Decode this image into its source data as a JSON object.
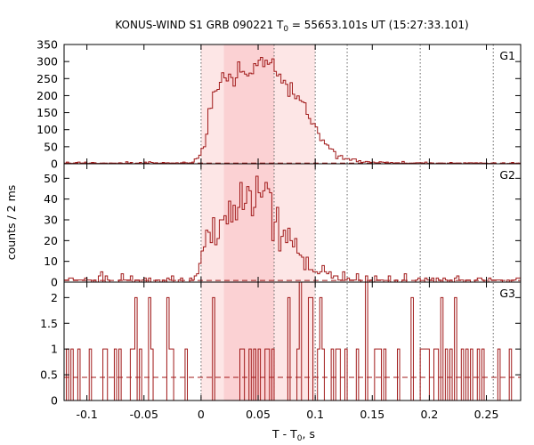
{
  "chart_data": {
    "type": "line",
    "title": "KONUS-WIND S1 GRB 090221 T",
    "title_sub": "0",
    "title_rest": " = 55653.101s UT (15:27:33.101)",
    "xlabel": "T - T",
    "xlabel_sub": "0",
    "xlabel_rest": ", s",
    "ylabel": "counts / 2 ms",
    "xlim": [
      -0.12,
      0.28
    ],
    "x_ticks": [
      -0.1,
      -0.05,
      0,
      0.05,
      0.1,
      0.15,
      0.2,
      0.25
    ],
    "x_tick_labels": [
      "-0.1",
      "-0.05",
      "0",
      "0.05",
      "0.1",
      "0.15",
      "0.2",
      "0.25"
    ],
    "dotted_lines_x": [
      0,
      0.064,
      0.1,
      0.128,
      0.192,
      0.256
    ],
    "shaded_regions": [
      {
        "from": 0,
        "to": 0.1,
        "color": "#fde6e6"
      },
      {
        "from": 0.02,
        "to": 0.064,
        "color": "#fbd1d3"
      }
    ],
    "line_color": "#a01818",
    "panels": [
      {
        "name": "G1",
        "ylim": [
          0,
          350
        ],
        "y_ticks": [
          0,
          50,
          100,
          150,
          200,
          250,
          300,
          350
        ],
        "y_tick_labels": [
          "0",
          "50",
          "100",
          "150",
          "200",
          "250",
          "300",
          "350"
        ],
        "background": 2,
        "shape": [
          [
            -0.12,
            2
          ],
          [
            -0.014,
            2
          ],
          [
            -0.012,
            3
          ],
          [
            -0.008,
            5
          ],
          [
            -0.006,
            8
          ],
          [
            -0.004,
            14
          ],
          [
            -0.002,
            22
          ],
          [
            0,
            30
          ],
          [
            0.002,
            45
          ],
          [
            0.004,
            70
          ],
          [
            0.006,
            110
          ],
          [
            0.008,
            150
          ],
          [
            0.01,
            185
          ],
          [
            0.012,
            210
          ],
          [
            0.014,
            230
          ],
          [
            0.016,
            245
          ],
          [
            0.018,
            250
          ],
          [
            0.02,
            255
          ],
          [
            0.025,
            248
          ],
          [
            0.03,
            258
          ],
          [
            0.035,
            270
          ],
          [
            0.04,
            282
          ],
          [
            0.045,
            292
          ],
          [
            0.05,
            298
          ],
          [
            0.055,
            298
          ],
          [
            0.06,
            292
          ],
          [
            0.065,
            282
          ],
          [
            0.07,
            265
          ],
          [
            0.075,
            245
          ],
          [
            0.08,
            222
          ],
          [
            0.085,
            195
          ],
          [
            0.09,
            165
          ],
          [
            0.095,
            140
          ],
          [
            0.1,
            110
          ],
          [
            0.105,
            80
          ],
          [
            0.11,
            55
          ],
          [
            0.115,
            38
          ],
          [
            0.12,
            26
          ],
          [
            0.125,
            18
          ],
          [
            0.13,
            12
          ],
          [
            0.14,
            7
          ],
          [
            0.15,
            5
          ],
          [
            0.17,
            3
          ],
          [
            0.2,
            2
          ],
          [
            0.28,
            2
          ]
        ]
      },
      {
        "name": "G2",
        "ylim": [
          0,
          57
        ],
        "y_ticks": [
          0,
          10,
          20,
          30,
          40,
          50
        ],
        "y_tick_labels": [
          "0",
          "10",
          "20",
          "30",
          "40",
          "50"
        ],
        "background": 0.8,
        "shape": [
          [
            -0.12,
            1
          ],
          [
            -0.012,
            1
          ],
          [
            -0.008,
            1.5
          ],
          [
            -0.004,
            3
          ],
          [
            -0.002,
            5
          ],
          [
            0,
            8
          ],
          [
            0.002,
            13
          ],
          [
            0.004,
            18
          ],
          [
            0.006,
            22
          ],
          [
            0.01,
            25
          ],
          [
            0.015,
            28
          ],
          [
            0.02,
            30
          ],
          [
            0.03,
            34
          ],
          [
            0.04,
            38
          ],
          [
            0.05,
            41
          ],
          [
            0.055,
            42
          ],
          [
            0.06,
            40
          ],
          [
            0.065,
            37
          ],
          [
            0.07,
            31
          ],
          [
            0.075,
            24
          ],
          [
            0.08,
            18
          ],
          [
            0.085,
            14
          ],
          [
            0.09,
            10
          ],
          [
            0.095,
            7
          ],
          [
            0.1,
            5
          ],
          [
            0.11,
            3.5
          ],
          [
            0.12,
            2.5
          ],
          [
            0.14,
            1.5
          ],
          [
            0.16,
            1
          ],
          [
            0.28,
            1
          ]
        ]
      },
      {
        "name": "G3",
        "ylim": [
          0,
          2.3
        ],
        "y_ticks": [
          0,
          0.5,
          1,
          1.5,
          2
        ],
        "y_tick_labels": [
          "0",
          "0.5",
          "1",
          "1.5",
          "2"
        ],
        "background": 0.45,
        "shape": [
          [
            -0.12,
            0.45
          ],
          [
            0.28,
            0.45
          ]
        ]
      }
    ]
  }
}
